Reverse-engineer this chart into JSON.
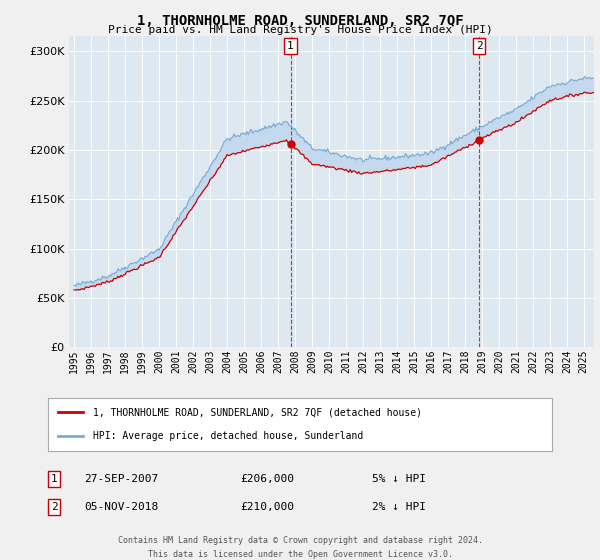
{
  "title": "1, THORNHOLME ROAD, SUNDERLAND, SR2 7QF",
  "subtitle": "Price paid vs. HM Land Registry's House Price Index (HPI)",
  "ytick_values": [
    0,
    50000,
    100000,
    150000,
    200000,
    250000,
    300000
  ],
  "ylim": [
    0,
    315000
  ],
  "xlim_start": 1994.7,
  "xlim_end": 2025.6,
  "background_color": "#f0f0f0",
  "plot_bg": "#dde8f0",
  "grid_color": "#ffffff",
  "hpi_color": "#7aadd4",
  "hpi_fill": "#c5d9ee",
  "price_color": "#cc0000",
  "sale1_x": 2007.74,
  "sale1_y": 206000,
  "sale1_label": "27-SEP-2007",
  "sale1_price": "£206,000",
  "sale1_note": "5% ↓ HPI",
  "sale2_x": 2018.84,
  "sale2_y": 210000,
  "sale2_label": "05-NOV-2018",
  "sale2_price": "£210,000",
  "sale2_note": "2% ↓ HPI",
  "legend_line1": "1, THORNHOLME ROAD, SUNDERLAND, SR2 7QF (detached house)",
  "legend_line2": "HPI: Average price, detached house, Sunderland",
  "footnote1": "Contains HM Land Registry data © Crown copyright and database right 2024.",
  "footnote2": "This data is licensed under the Open Government Licence v3.0."
}
